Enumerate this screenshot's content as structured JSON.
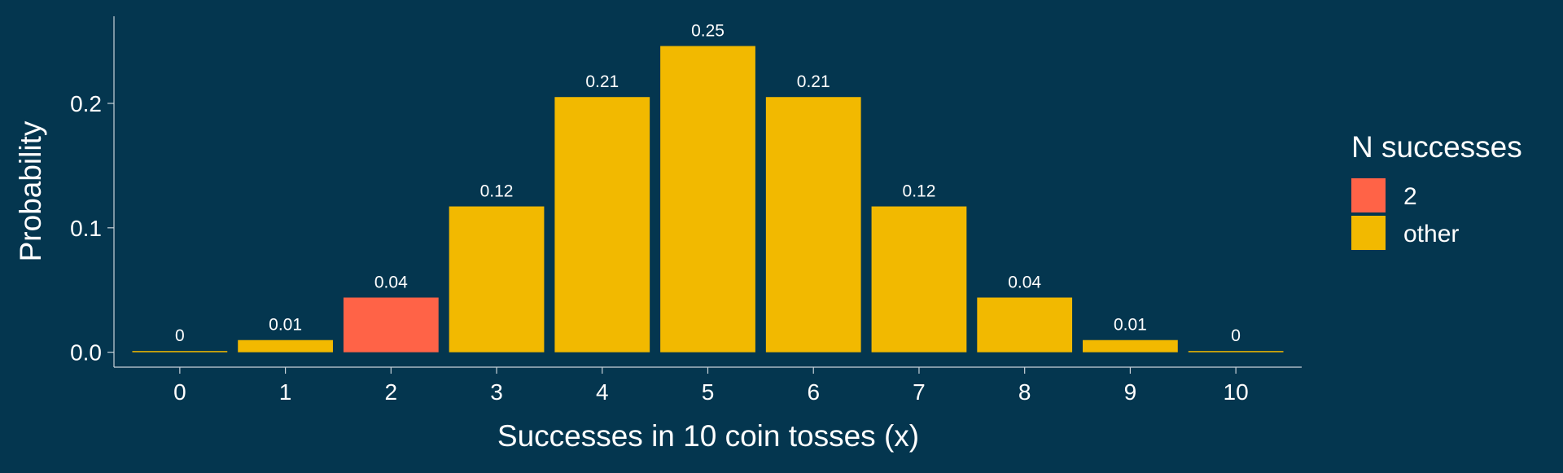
{
  "colors": {
    "background": "#04364f",
    "highlight": "#ff6347",
    "other": "#f2b900",
    "axis": "#c9d3da",
    "text": "#ffffff"
  },
  "chart_data": {
    "type": "bar",
    "categories": [
      "0",
      "1",
      "2",
      "3",
      "4",
      "5",
      "6",
      "7",
      "8",
      "9",
      "10"
    ],
    "values": [
      0.000977,
      0.009766,
      0.043945,
      0.117188,
      0.205078,
      0.246094,
      0.205078,
      0.117188,
      0.043945,
      0.009766,
      0.000977
    ],
    "data_labels": [
      "0",
      "0.01",
      "0.04",
      "0.12",
      "0.21",
      "0.25",
      "0.21",
      "0.12",
      "0.04",
      "0.01",
      "0"
    ],
    "groups": [
      "other",
      "other",
      "2",
      "other",
      "other",
      "other",
      "other",
      "other",
      "other",
      "other",
      "other"
    ],
    "xlabel": "Successes in 10 coin tosses (x)",
    "ylabel": "Probability",
    "ylim": [
      -0.012,
      0.27
    ],
    "yticks": [
      0.0,
      0.1,
      0.2
    ],
    "ytick_labels": [
      "0.0",
      "0.1",
      "0.2"
    ],
    "grid": false,
    "legend": {
      "title": "N successes",
      "position": "right",
      "entries": [
        {
          "label": "2",
          "color": "#ff6347"
        },
        {
          "label": "other",
          "color": "#f2b900"
        }
      ]
    }
  }
}
